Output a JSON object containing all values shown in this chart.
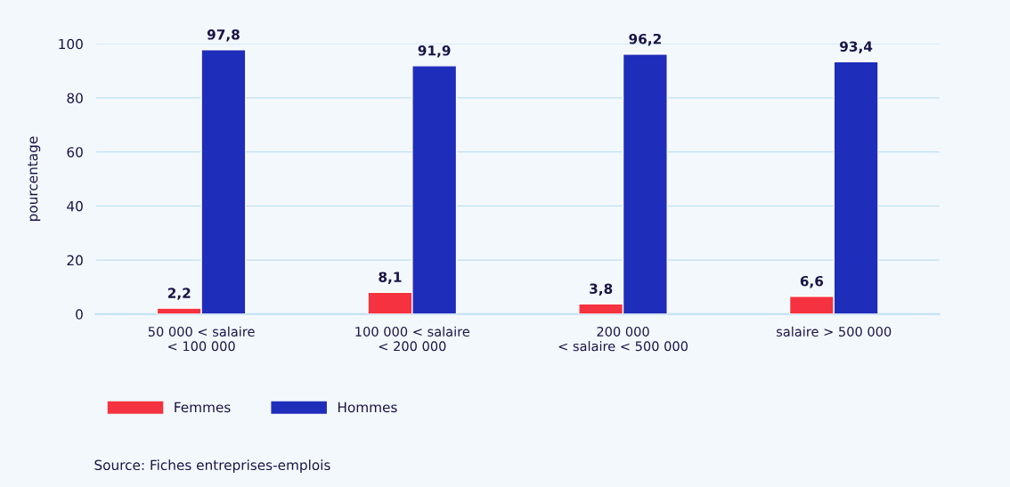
{
  "chart_data": {
    "type": "bar",
    "ylabel": "pourcentage",
    "categories": [
      "50 000 < salaire\n< 100 000",
      "100 000 < salaire\n< 200 000",
      "200 000\n< salaire < 500 000",
      "salaire > 500 000"
    ],
    "series": [
      {
        "name": "Femmes",
        "color": "#f5323f",
        "values": [
          2.2,
          8.1,
          3.8,
          6.6
        ],
        "value_labels": [
          "2,2",
          "8,1",
          "3,8",
          "6,6"
        ]
      },
      {
        "name": "Hommes",
        "color": "#1f2dbb",
        "values": [
          97.8,
          91.9,
          96.2,
          93.4
        ],
        "value_labels": [
          "97,8",
          "91,9",
          "96,2",
          "93,4"
        ]
      }
    ],
    "ylim": [
      0,
      100
    ],
    "yticks": [
      0,
      20,
      40,
      60,
      80,
      100
    ],
    "grid": "y",
    "legend": "bottom",
    "annotations": [
      "Source: Fiches entreprises-emplois"
    ]
  }
}
